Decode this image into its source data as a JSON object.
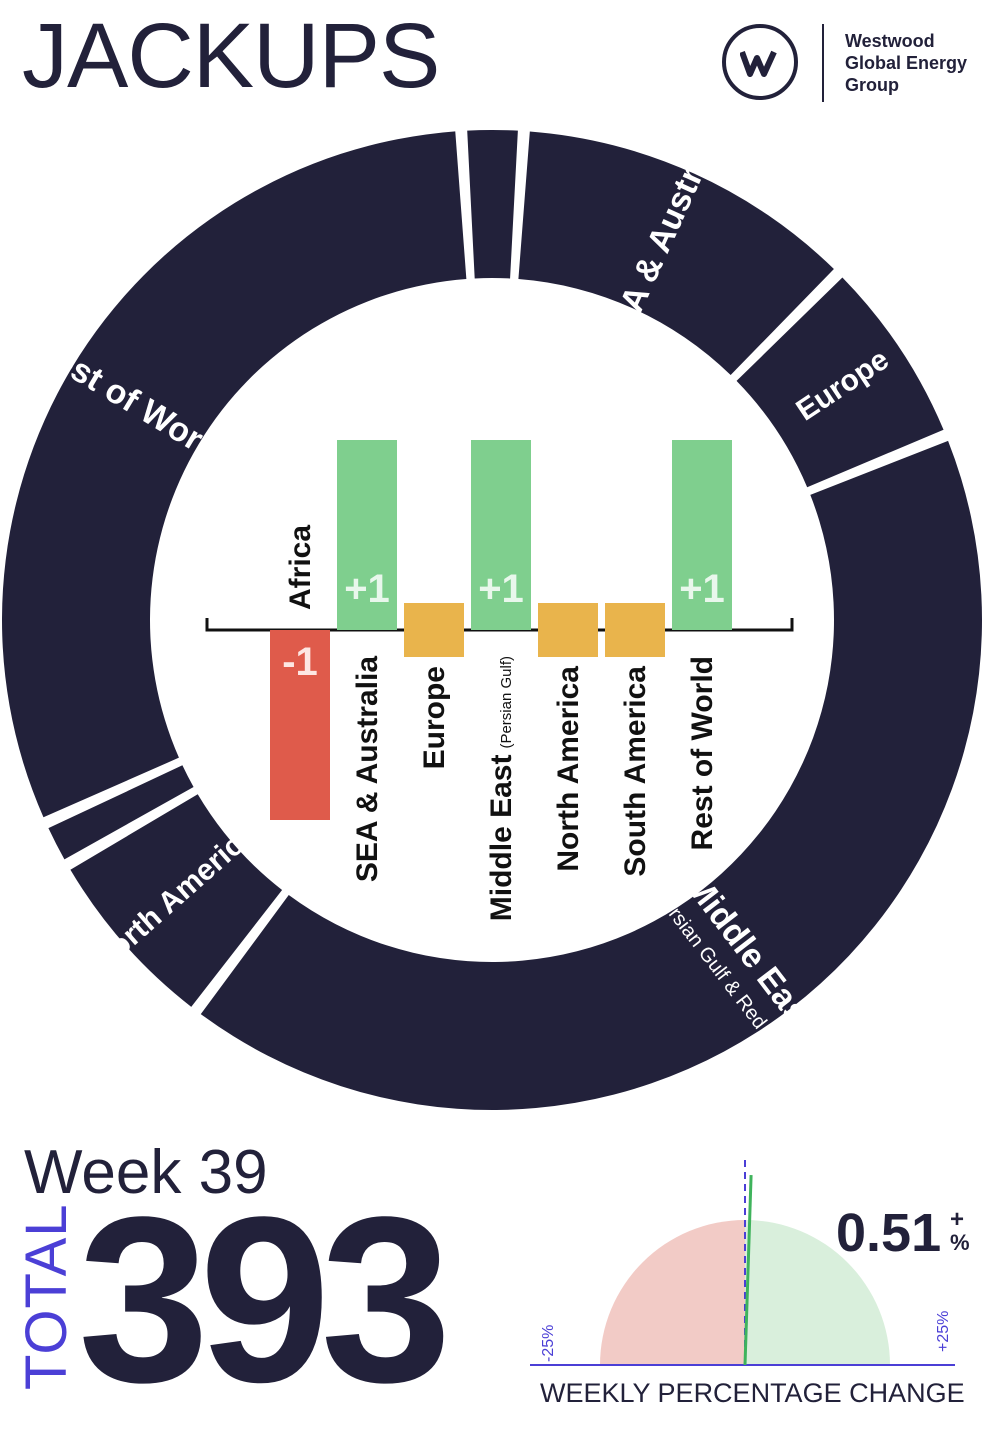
{
  "header": {
    "title": "JACKUPS",
    "logo_lines": [
      "Westwood",
      "Global Energy",
      "Group"
    ]
  },
  "colors": {
    "navy": "#22213a",
    "positive": "#7fcf8e",
    "neutral": "#e9b44c",
    "negative": "#df5b4b",
    "accent": "#4b3fd6",
    "gauge_negative": "#f2cbc6",
    "gauge_positive": "#d9efdc"
  },
  "chart_data": [
    {
      "type": "pie",
      "variant": "donut",
      "title": "",
      "slices": [
        {
          "label": "Africa",
          "value": 8
        },
        {
          "label": "SEA & Australia",
          "value": 45
        },
        {
          "label": "Europe",
          "value": 25
        },
        {
          "label": "Middle East",
          "label_sub": "(Persian Gulf & Red Sea)",
          "value": 163
        },
        {
          "label": "North America",
          "value": 25
        },
        {
          "label": "South America",
          "value": 6
        },
        {
          "label": "Rest of World",
          "value": 121
        }
      ]
    },
    {
      "type": "bar",
      "title": "",
      "categories": [
        "Africa",
        "SEA & Australia",
        "Europe",
        "Middle East",
        "North America",
        "South America",
        "Rest of World"
      ],
      "category_subs": [
        "",
        "",
        "",
        "(Persian Gulf)",
        "",
        "",
        ""
      ],
      "values": [
        -1,
        1,
        0,
        1,
        0,
        0,
        1
      ],
      "value_labels": [
        "-1",
        "+1",
        "",
        "+1",
        "",
        "",
        "+1"
      ]
    }
  ],
  "summary": {
    "week": "Week 39",
    "total_label": "TOTAL",
    "total_value": "393",
    "percent_value": "0.51",
    "percent_sign": "+",
    "percent_unit": "%",
    "percent_change": 0.51
  },
  "gauge": {
    "caption": "WEEKLY PERCENTAGE CHANGE",
    "min_label": "-25%",
    "max_label": "+25%",
    "range": [
      -25,
      25
    ]
  }
}
